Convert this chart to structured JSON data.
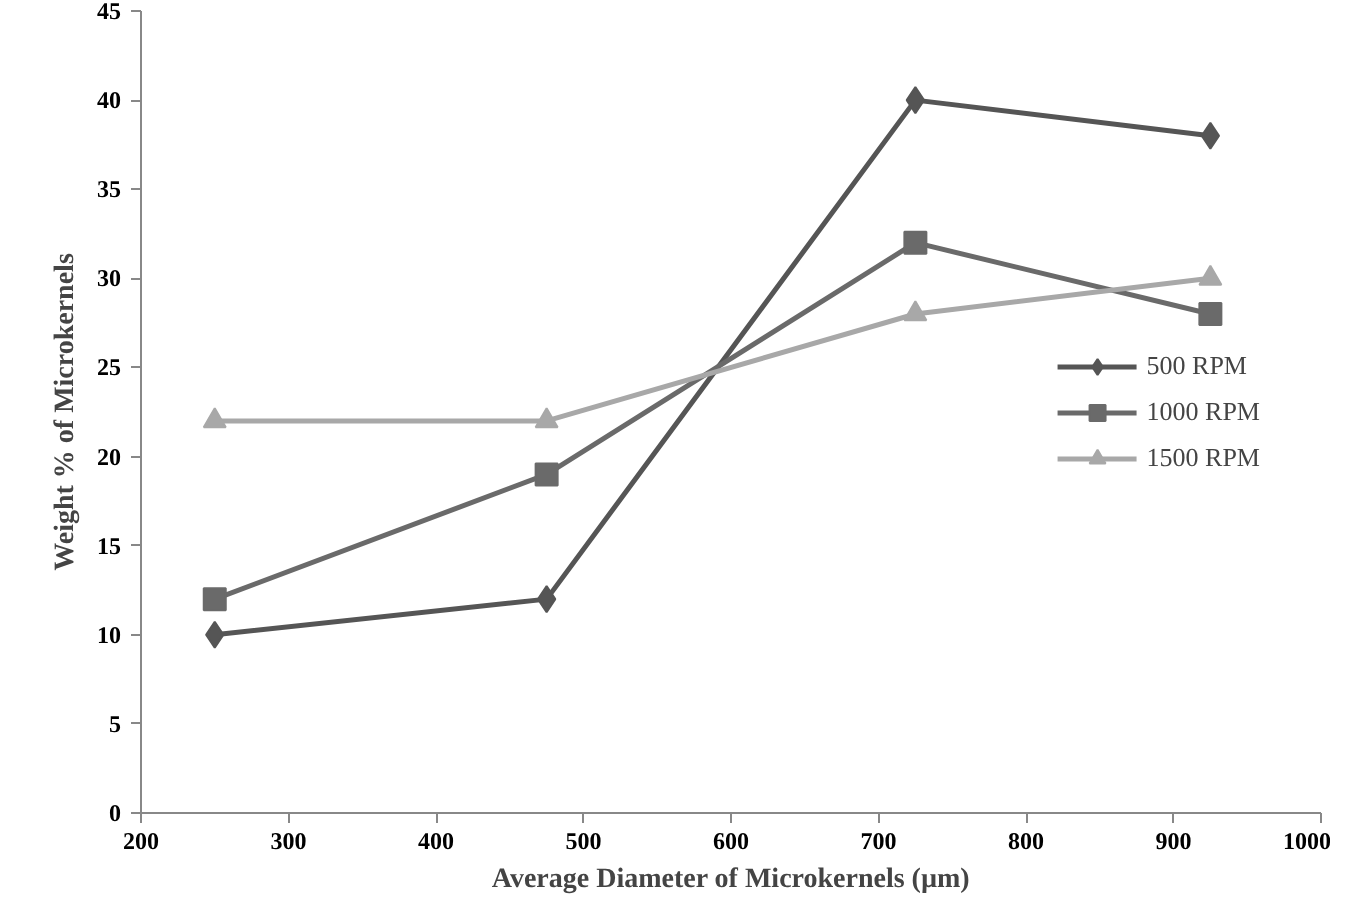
{
  "chart_data": {
    "type": "line",
    "xlabel": "Average Diameter of Microkernels (µm)",
    "ylabel": "Weight % of Microkernels",
    "x": [
      250,
      475,
      725,
      925
    ],
    "series": [
      {
        "name": "500 RPM",
        "color": "#555555",
        "marker": "diamond",
        "values": [
          10,
          12,
          40,
          38
        ]
      },
      {
        "name": "1000 RPM",
        "color": "#6a6a6a",
        "marker": "square",
        "values": [
          12,
          19,
          32,
          28
        ]
      },
      {
        "name": "1500 RPM",
        "color": "#a8a8a8",
        "marker": "triangle",
        "values": [
          22,
          22,
          28,
          30
        ]
      }
    ],
    "xlim": [
      200,
      1000
    ],
    "xticks": [
      200,
      300,
      400,
      500,
      600,
      700,
      800,
      900,
      1000
    ],
    "ylim": [
      0,
      45
    ],
    "yticks": [
      0,
      5,
      10,
      15,
      20,
      25,
      30,
      35,
      40,
      45
    ],
    "grid": false,
    "legend": "right",
    "line_style": "solid"
  }
}
